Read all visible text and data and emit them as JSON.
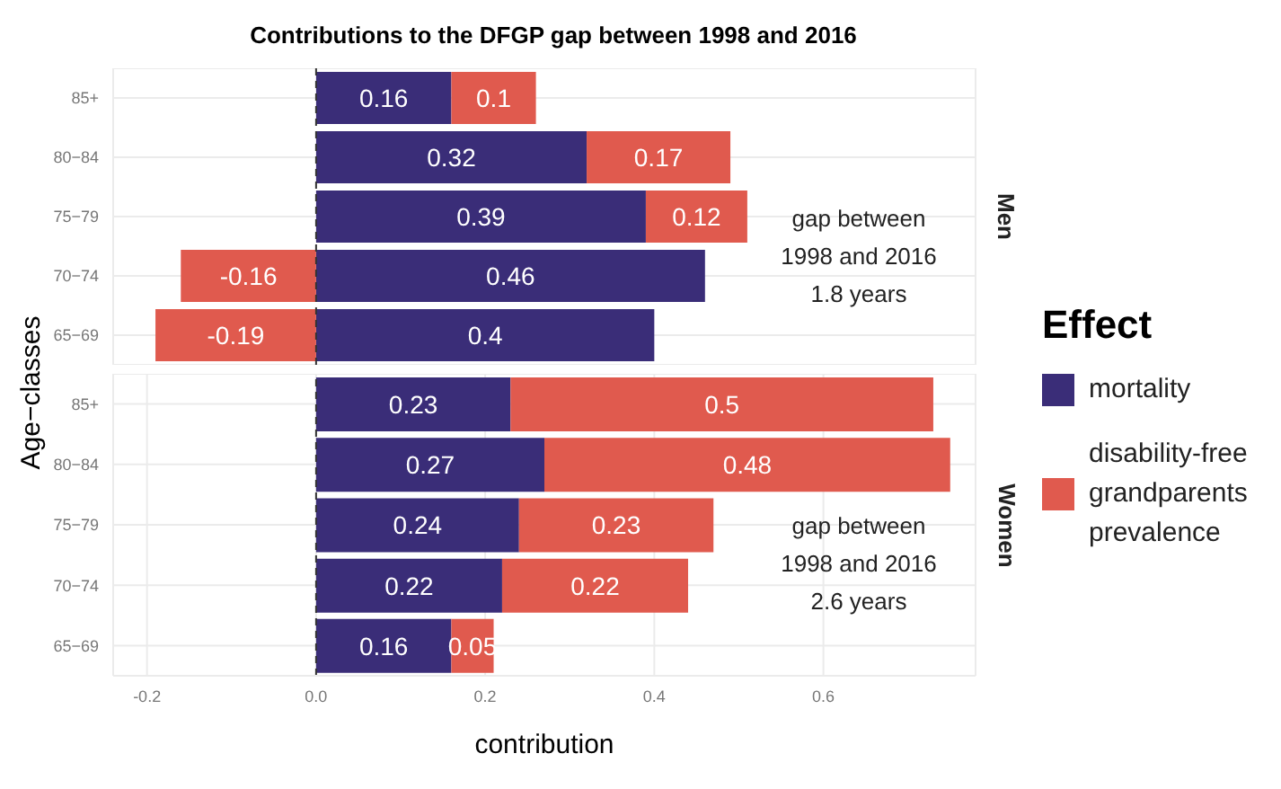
{
  "chart_data": [
    {
      "type": "bar",
      "title": "Contributions to the DFGP gap between 1998 and 2016",
      "orientation": "horizontal",
      "stacked": true,
      "categories": [
        "85+",
        "80−84",
        "75−79",
        "70−74",
        "65−69"
      ],
      "series": [
        {
          "name": "mortality",
          "color": "#3a2d78",
          "values": [
            0.16,
            0.32,
            0.39,
            0.46,
            0.4
          ]
        },
        {
          "name": "disability-free grandparents prevalence",
          "color": "#e05a4e",
          "values": [
            0.1,
            0.17,
            0.12,
            -0.16,
            -0.19
          ]
        }
      ],
      "xlim": [
        -0.24,
        0.78
      ],
      "xticks": [
        -0.2,
        0.2,
        0.4,
        0.6
      ],
      "tick_labels": "y",
      "grid": true,
      "data_labels": true,
      "ref_lines": [
        {
          "axis": "x",
          "value": 0,
          "color": "#333333",
          "line_style": "dashed"
        }
      ],
      "y2label": "Men",
      "annotations": [
        "gap between\n1998 and 2016\n1.8 years"
      ],
      "legend": "right",
      "legend_title": "Effect",
      "ylabel": "Age−classes"
    },
    {
      "type": "bar",
      "orientation": "horizontal",
      "stacked": true,
      "categories": [
        "85+",
        "80−84",
        "75−79",
        "70−74",
        "65−69"
      ],
      "series": [
        {
          "color": "#3a2d78",
          "values": [
            0.23,
            0.27,
            0.24,
            0.22,
            0.16
          ]
        },
        {
          "color": "#e05a4e",
          "values": [
            0.5,
            0.48,
            0.23,
            0.22,
            0.05
          ]
        }
      ],
      "xlim": [
        -0.24,
        0.78
      ],
      "xticks": [
        -0.2,
        {
          "value": 0,
          "label": "0.0"
        },
        0.2,
        0.4,
        0.6
      ],
      "grid": true,
      "data_labels": true,
      "ref_lines": [
        {
          "axis": "x",
          "value": 0,
          "color": "#333333",
          "line_style": "dashed"
        }
      ],
      "y2label": "Women",
      "annotations": [
        "gap between\n1998 and 2016\n2.6 years"
      ],
      "xlabel": "contribution"
    }
  ]
}
